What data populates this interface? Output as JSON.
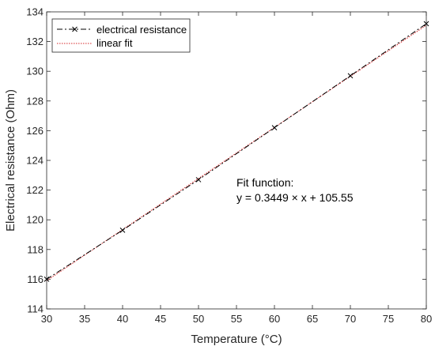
{
  "chart_data": {
    "type": "line",
    "xlabel": "Temperature (°C)",
    "ylabel": "Electrical resistance (Ohm)",
    "xlim": [
      30,
      80
    ],
    "ylim": [
      114,
      134
    ],
    "xticks": [
      "30",
      "35",
      "40",
      "45",
      "50",
      "55",
      "60",
      "65",
      "70",
      "75",
      "80"
    ],
    "yticks": [
      "114",
      "116",
      "118",
      "120",
      "122",
      "124",
      "126",
      "128",
      "130",
      "132",
      "134"
    ],
    "grid": false,
    "legend_position": "top-left",
    "series": [
      {
        "name": "electrical resistance",
        "style": "dash-dot line with x markers",
        "color": "#000000",
        "x": [
          30,
          40,
          50,
          60,
          70,
          80
        ],
        "y": [
          116.0,
          119.3,
          122.7,
          126.2,
          129.7,
          133.2
        ]
      },
      {
        "name": "linear fit",
        "style": "dotted line",
        "color": "#d62728",
        "x": [
          30,
          80
        ],
        "y": [
          115.9,
          133.1
        ]
      }
    ],
    "annotation": {
      "line1": "Fit function:",
      "line2": "y = 0.3449 × x + 105.55"
    }
  }
}
